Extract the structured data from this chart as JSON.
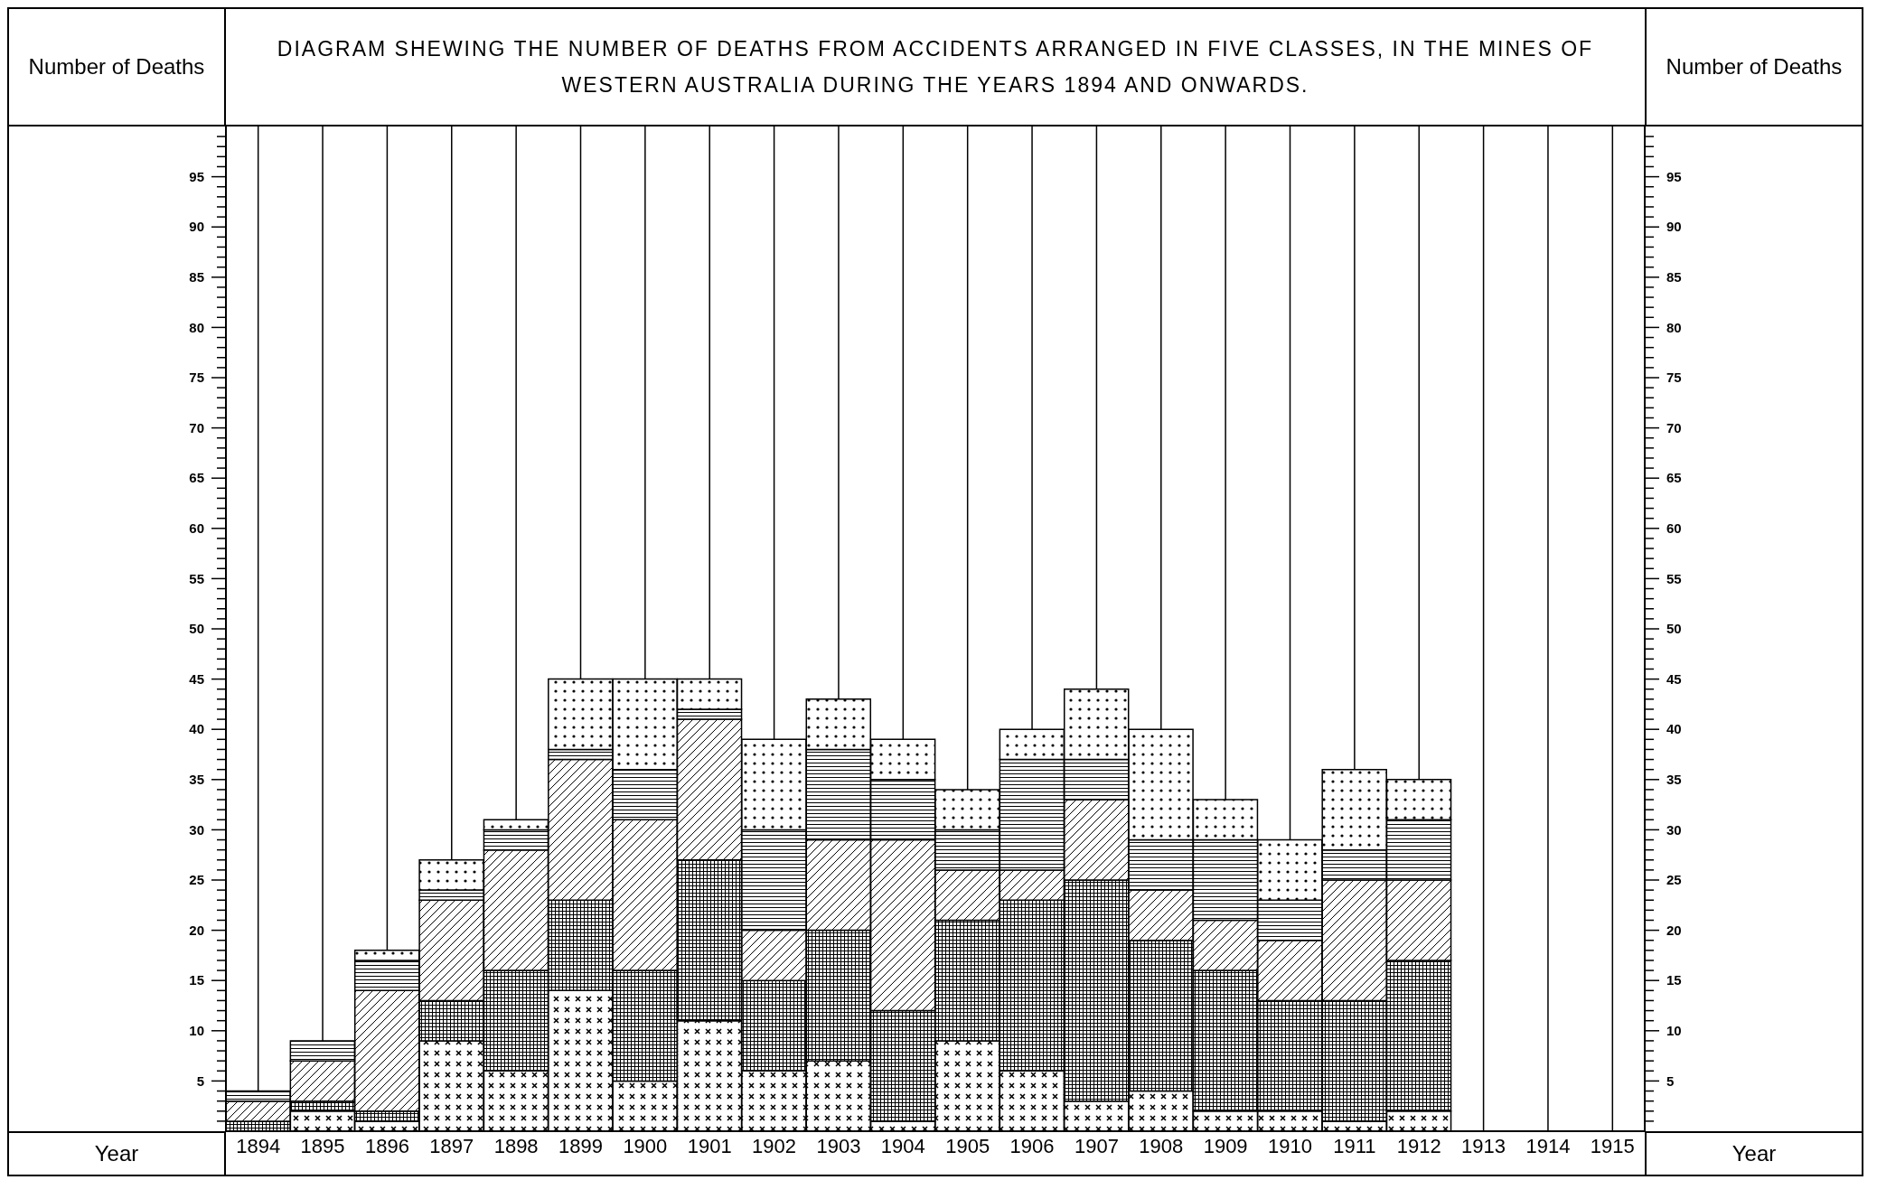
{
  "chart_data": {
    "type": "bar",
    "stacked": true,
    "title": "DIAGRAM SHEWING THE NUMBER OF DEATHS FROM ACCIDENTS ARRANGED IN FIVE CLASSES, IN THE MINES OF WESTERN AUSTRALIA DURING THE YEARS 1894 AND ONWARDS.",
    "xlabel": "Year",
    "ylabel": "Number of Deaths",
    "y2label": "Number of Deaths",
    "categories": [
      "1894",
      "1895",
      "1896",
      "1897",
      "1898",
      "1899",
      "1900",
      "1901",
      "1902",
      "1903",
      "1904",
      "1905",
      "1906",
      "1907",
      "1908",
      "1909",
      "1910",
      "1911",
      "1912",
      "1913",
      "1914",
      "1915"
    ],
    "series": [
      {
        "color": "#000000",
        "values": [
          0,
          2,
          1,
          9,
          6,
          14,
          5,
          11,
          6,
          7,
          1,
          9,
          6,
          3,
          4,
          2,
          2,
          1,
          2,
          null,
          null,
          null
        ]
      },
      {
        "color": "#000000",
        "values": [
          1,
          1,
          1,
          4,
          10,
          9,
          11,
          16,
          9,
          13,
          11,
          12,
          17,
          22,
          15,
          14,
          11,
          12,
          15,
          null,
          null,
          null
        ]
      },
      {
        "color": "#000000",
        "values": [
          2,
          4,
          12,
          10,
          12,
          14,
          15,
          14,
          5,
          9,
          17,
          5,
          3,
          8,
          5,
          5,
          6,
          12,
          8,
          null,
          null,
          null
        ]
      },
      {
        "color": "#000000",
        "values": [
          1,
          2,
          3,
          1,
          2,
          1,
          5,
          1,
          10,
          9,
          6,
          4,
          11,
          4,
          5,
          8,
          4,
          3,
          6,
          null,
          null,
          null
        ]
      },
      {
        "color": "#000000",
        "values": [
          0,
          0,
          1,
          3,
          1,
          7,
          9,
          3,
          9,
          5,
          4,
          4,
          3,
          7,
          11,
          4,
          6,
          8,
          4,
          null,
          null,
          null
        ]
      }
    ],
    "ylim": [
      0,
      100
    ],
    "yticks": [
      {
        "value": 1,
        "label": null
      },
      {
        "value": 2,
        "label": null
      },
      {
        "value": 3,
        "label": null
      },
      {
        "value": 4,
        "label": null
      },
      5,
      {
        "value": 6,
        "label": null
      },
      {
        "value": 7,
        "label": null
      },
      {
        "value": 8,
        "label": null
      },
      {
        "value": 9,
        "label": null
      },
      10,
      {
        "value": 11,
        "label": null
      },
      {
        "value": 12,
        "label": null
      },
      {
        "value": 13,
        "label": null
      },
      {
        "value": 14,
        "label": null
      },
      15,
      {
        "value": 16,
        "label": null
      },
      {
        "value": 17,
        "label": null
      },
      {
        "value": 18,
        "label": null
      },
      {
        "value": 19,
        "label": null
      },
      20,
      {
        "value": 21,
        "label": null
      },
      {
        "value": 22,
        "label": null
      },
      {
        "value": 23,
        "label": null
      },
      {
        "value": 24,
        "label": null
      },
      25,
      {
        "value": 26,
        "label": null
      },
      {
        "value": 27,
        "label": null
      },
      {
        "value": 28,
        "label": null
      },
      {
        "value": 29,
        "label": null
      },
      30,
      {
        "value": 31,
        "label": null
      },
      {
        "value": 32,
        "label": null
      },
      {
        "value": 33,
        "label": null
      },
      {
        "value": 34,
        "label": null
      },
      35,
      {
        "value": 36,
        "label": null
      },
      {
        "value": 37,
        "label": null
      },
      {
        "value": 38,
        "label": null
      },
      {
        "value": 39,
        "label": null
      },
      40,
      {
        "value": 41,
        "label": null
      },
      {
        "value": 42,
        "label": null
      },
      {
        "value": 43,
        "label": null
      },
      {
        "value": 44,
        "label": null
      },
      45,
      {
        "value": 46,
        "label": null
      },
      {
        "value": 47,
        "label": null
      },
      {
        "value": 48,
        "label": null
      },
      {
        "value": 49,
        "label": null
      },
      50,
      {
        "value": 51,
        "label": null
      },
      {
        "value": 52,
        "label": null
      },
      {
        "value": 53,
        "label": null
      },
      {
        "value": 54,
        "label": null
      },
      55,
      {
        "value": 56,
        "label": null
      },
      {
        "value": 57,
        "label": null
      },
      {
        "value": 58,
        "label": null
      },
      {
        "value": 59,
        "label": null
      },
      60,
      {
        "value": 61,
        "label": null
      },
      {
        "value": 62,
        "label": null
      },
      {
        "value": 63,
        "label": null
      },
      {
        "value": 64,
        "label": null
      },
      65,
      {
        "value": 66,
        "label": null
      },
      {
        "value": 67,
        "label": null
      },
      {
        "value": 68,
        "label": null
      },
      {
        "value": 69,
        "label": null
      },
      70,
      {
        "value": 71,
        "label": null
      },
      {
        "value": 72,
        "label": null
      },
      {
        "value": 73,
        "label": null
      },
      {
        "value": 74,
        "label": null
      },
      75,
      {
        "value": 76,
        "label": null
      },
      {
        "value": 77,
        "label": null
      },
      {
        "value": 78,
        "label": null
      },
      {
        "value": 79,
        "label": null
      },
      80,
      {
        "value": 81,
        "label": null
      },
      {
        "value": 82,
        "label": null
      },
      {
        "value": 83,
        "label": null
      },
      {
        "value": 84,
        "label": null
      },
      85,
      {
        "value": 86,
        "label": null
      },
      {
        "value": 87,
        "label": null
      },
      {
        "value": 88,
        "label": null
      },
      {
        "value": 89,
        "label": null
      },
      90,
      {
        "value": 91,
        "label": null
      },
      {
        "value": 92,
        "label": null
      },
      {
        "value": 93,
        "label": null
      },
      {
        "value": 94,
        "label": null
      },
      95,
      {
        "value": 96,
        "label": null
      },
      {
        "value": 97,
        "label": null
      },
      {
        "value": 98,
        "label": null
      },
      {
        "value": 99,
        "label": null
      }
    ],
    "y2lim": [
      0,
      100
    ],
    "y2ticks": [
      {
        "value": 1,
        "label": null
      },
      {
        "value": 2,
        "label": null
      },
      {
        "value": 3,
        "label": null
      },
      {
        "value": 4,
        "label": null
      },
      5,
      {
        "value": 6,
        "label": null
      },
      {
        "value": 7,
        "label": null
      },
      {
        "value": 8,
        "label": null
      },
      {
        "value": 9,
        "label": null
      },
      10,
      {
        "value": 11,
        "label": null
      },
      {
        "value": 12,
        "label": null
      },
      {
        "value": 13,
        "label": null
      },
      {
        "value": 14,
        "label": null
      },
      15,
      {
        "value": 16,
        "label": null
      },
      {
        "value": 17,
        "label": null
      },
      {
        "value": 18,
        "label": null
      },
      {
        "value": 19,
        "label": null
      },
      20,
      {
        "value": 21,
        "label": null
      },
      {
        "value": 22,
        "label": null
      },
      {
        "value": 23,
        "label": null
      },
      {
        "value": 24,
        "label": null
      },
      25,
      {
        "value": 26,
        "label": null
      },
      {
        "value": 27,
        "label": null
      },
      {
        "value": 28,
        "label": null
      },
      {
        "value": 29,
        "label": null
      },
      30,
      {
        "value": 31,
        "label": null
      },
      {
        "value": 32,
        "label": null
      },
      {
        "value": 33,
        "label": null
      },
      {
        "value": 34,
        "label": null
      },
      35,
      {
        "value": 36,
        "label": null
      },
      {
        "value": 37,
        "label": null
      },
      {
        "value": 38,
        "label": null
      },
      {
        "value": 39,
        "label": null
      },
      40,
      {
        "value": 41,
        "label": null
      },
      {
        "value": 42,
        "label": null
      },
      {
        "value": 43,
        "label": null
      },
      {
        "value": 44,
        "label": null
      },
      45,
      {
        "value": 46,
        "label": null
      },
      {
        "value": 47,
        "label": null
      },
      {
        "value": 48,
        "label": null
      },
      {
        "value": 49,
        "label": null
      },
      50,
      {
        "value": 51,
        "label": null
      },
      {
        "value": 52,
        "label": null
      },
      {
        "value": 53,
        "label": null
      },
      {
        "value": 54,
        "label": null
      },
      55,
      {
        "value": 56,
        "label": null
      },
      {
        "value": 57,
        "label": null
      },
      {
        "value": 58,
        "label": null
      },
      {
        "value": 59,
        "label": null
      },
      60,
      {
        "value": 61,
        "label": null
      },
      {
        "value": 62,
        "label": null
      },
      {
        "value": 63,
        "label": null
      },
      {
        "value": 64,
        "label": null
      },
      65,
      {
        "value": 66,
        "label": null
      },
      {
        "value": 67,
        "label": null
      },
      {
        "value": 68,
        "label": null
      },
      {
        "value": 69,
        "label": null
      },
      70,
      {
        "value": 71,
        "label": null
      },
      {
        "value": 72,
        "label": null
      },
      {
        "value": 73,
        "label": null
      },
      {
        "value": 74,
        "label": null
      },
      75,
      {
        "value": 76,
        "label": null
      },
      {
        "value": 77,
        "label": null
      },
      {
        "value": 78,
        "label": null
      },
      {
        "value": 79,
        "label": null
      },
      80,
      {
        "value": 81,
        "label": null
      },
      {
        "value": 82,
        "label": null
      },
      {
        "value": 83,
        "label": null
      },
      {
        "value": 84,
        "label": null
      },
      85,
      {
        "value": 86,
        "label": null
      },
      {
        "value": 87,
        "label": null
      },
      {
        "value": 88,
        "label": null
      },
      {
        "value": 89,
        "label": null
      },
      90,
      {
        "value": 91,
        "label": null
      },
      {
        "value": 92,
        "label": null
      },
      {
        "value": 93,
        "label": null
      },
      {
        "value": 94,
        "label": null
      },
      95,
      {
        "value": 96,
        "label": null
      },
      {
        "value": 97,
        "label": null
      },
      {
        "value": 98,
        "label": null
      },
      {
        "value": 99,
        "label": null
      }
    ],
    "grid": "x",
    "legend": false
  }
}
